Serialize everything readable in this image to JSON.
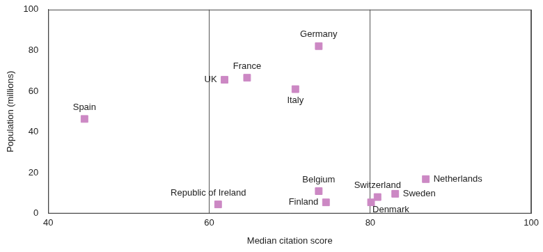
{
  "chart_data": {
    "type": "scatter",
    "x_label": "Median citation score",
    "y_label": "Population (millions)",
    "labels": [
      "Spain",
      "UK",
      "France",
      "Italy",
      "Germany",
      "Republic of Ireland",
      "Belgium",
      "Finland",
      "Denmark",
      "Switzerland",
      "Sweden",
      "Netherlands"
    ],
    "x": [
      44.5,
      61.9,
      64.7,
      70.7,
      73.6,
      61.1,
      73.6,
      74.5,
      80.1,
      80.9,
      83.1,
      86.9
    ],
    "values": [
      46.4,
      65.6,
      66.6,
      61.0,
      82.1,
      4.5,
      11.0,
      5.5,
      5.5,
      8.1,
      9.7,
      16.9
    ],
    "color": "#cc88c4",
    "marker": "square",
    "xlim": [
      40,
      100
    ],
    "xticks": [
      40,
      60,
      80,
      100
    ],
    "ylim": [
      0,
      100
    ],
    "yticks": [
      0,
      20,
      40,
      60,
      80,
      100
    ],
    "grid": true
  }
}
